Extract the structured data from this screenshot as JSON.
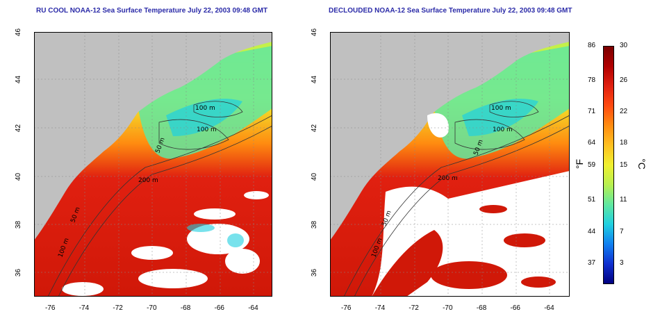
{
  "left_map": {
    "title": "RU COOL NOAA-12 Sea Surface Temperature July 22, 2003 09:48 GMT"
  },
  "right_map": {
    "title": "DECLOUDED NOAA-12 Sea Surface Temperature July 22, 2003 09:48 GMT"
  },
  "axes": {
    "lon_ticks": [
      "-76",
      "-74",
      "-72",
      "-70",
      "-68",
      "-66",
      "-64"
    ],
    "lat_ticks": [
      "46",
      "44",
      "42",
      "40",
      "38",
      "36"
    ]
  },
  "contour_labels": {
    "left": [
      "100 m",
      "100 m",
      "50 m",
      "200 m",
      "50 m",
      "100 m"
    ],
    "right": [
      "100 m",
      "100 m",
      "50 m",
      "200 m",
      "50 m",
      "100 m"
    ]
  },
  "colorbar": {
    "fahrenheit_ticks": [
      "86",
      "78",
      "71",
      "64",
      "59",
      "51",
      "44",
      "37"
    ],
    "celsius_ticks": [
      "30",
      "26",
      "22",
      "18",
      "15",
      "11",
      "7",
      "3"
    ],
    "unit_f": "°F",
    "unit_c": "°C",
    "colors": [
      "#7a0000",
      "#b00000",
      "#e02010",
      "#ff4a10",
      "#ff8c10",
      "#ffc020",
      "#f0f030",
      "#b8f050",
      "#60e8a0",
      "#20d0e0",
      "#1080f0",
      "#1030d0",
      "#000080"
    ]
  },
  "colors": {
    "land": "#c0c0c0",
    "cloud": "#ffffff",
    "title": "#2b2ba8"
  }
}
